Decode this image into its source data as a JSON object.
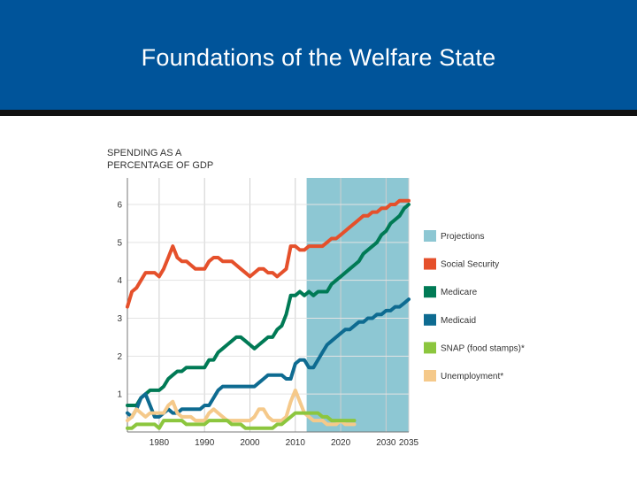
{
  "slide": {
    "title": "Foundations of the Welfare State"
  },
  "chart_data": {
    "type": "line",
    "title": "",
    "ylabel_lines": [
      "SPENDING AS A",
      "PERCENTAGE  OF GDP"
    ],
    "xlabel": "",
    "xlim": [
      1973,
      2035
    ],
    "ylim": [
      0,
      6.7
    ],
    "xticks": [
      1980,
      1990,
      2000,
      2010,
      2020,
      2030,
      2035
    ],
    "xtick_labels": [
      "1980",
      "1990",
      "2000",
      "2010",
      "2020",
      "2030",
      "2035"
    ],
    "yticks": [
      1,
      2,
      3,
      4,
      5,
      6
    ],
    "ytick_labels": [
      "1",
      "2",
      "3",
      "4",
      "5",
      "6"
    ],
    "grid": true,
    "projection": {
      "label": "Projections",
      "from": 2012.5,
      "to": 2035,
      "color": "#8dc7d3"
    },
    "legend_position": "right",
    "series": [
      {
        "name": "Social Security",
        "color": "#e5502b",
        "x": [
          1973,
          1974,
          1975,
          1976,
          1977,
          1978,
          1979,
          1980,
          1981,
          1982,
          1983,
          1984,
          1985,
          1986,
          1987,
          1988,
          1989,
          1990,
          1991,
          1992,
          1993,
          1994,
          1995,
          1996,
          1997,
          1998,
          1999,
          2000,
          2001,
          2002,
          2003,
          2004,
          2005,
          2006,
          2007,
          2008,
          2009,
          2010,
          2011,
          2012,
          2013,
          2014,
          2015,
          2016,
          2017,
          2018,
          2019,
          2020,
          2021,
          2022,
          2023,
          2024,
          2025,
          2026,
          2027,
          2028,
          2029,
          2030,
          2031,
          2032,
          2033,
          2034,
          2035
        ],
        "values": [
          3.3,
          3.7,
          3.8,
          4.0,
          4.2,
          4.2,
          4.2,
          4.1,
          4.3,
          4.6,
          4.9,
          4.6,
          4.5,
          4.5,
          4.4,
          4.3,
          4.3,
          4.3,
          4.5,
          4.6,
          4.6,
          4.5,
          4.5,
          4.5,
          4.4,
          4.3,
          4.2,
          4.1,
          4.2,
          4.3,
          4.3,
          4.2,
          4.2,
          4.1,
          4.2,
          4.3,
          4.9,
          4.9,
          4.8,
          4.8,
          4.9,
          4.9,
          4.9,
          4.9,
          5.0,
          5.1,
          5.1,
          5.2,
          5.3,
          5.4,
          5.5,
          5.6,
          5.7,
          5.7,
          5.8,
          5.8,
          5.9,
          5.9,
          6.0,
          6.0,
          6.1,
          6.1,
          6.1
        ]
      },
      {
        "name": "Medicare",
        "color": "#007a55",
        "x": [
          1973,
          1974,
          1975,
          1976,
          1977,
          1978,
          1979,
          1980,
          1981,
          1982,
          1983,
          1984,
          1985,
          1986,
          1987,
          1988,
          1989,
          1990,
          1991,
          1992,
          1993,
          1994,
          1995,
          1996,
          1997,
          1998,
          1999,
          2000,
          2001,
          2002,
          2003,
          2004,
          2005,
          2006,
          2007,
          2008,
          2009,
          2010,
          2011,
          2012,
          2013,
          2014,
          2015,
          2016,
          2017,
          2018,
          2019,
          2020,
          2021,
          2022,
          2023,
          2024,
          2025,
          2026,
          2027,
          2028,
          2029,
          2030,
          2031,
          2032,
          2033,
          2034,
          2035
        ],
        "values": [
          0.7,
          0.7,
          0.7,
          0.9,
          1.0,
          1.1,
          1.1,
          1.1,
          1.2,
          1.4,
          1.5,
          1.6,
          1.6,
          1.7,
          1.7,
          1.7,
          1.7,
          1.7,
          1.9,
          1.9,
          2.1,
          2.2,
          2.3,
          2.4,
          2.5,
          2.5,
          2.4,
          2.3,
          2.2,
          2.3,
          2.4,
          2.5,
          2.5,
          2.7,
          2.8,
          3.1,
          3.6,
          3.6,
          3.7,
          3.6,
          3.7,
          3.6,
          3.7,
          3.7,
          3.7,
          3.9,
          4.0,
          4.1,
          4.2,
          4.3,
          4.4,
          4.5,
          4.7,
          4.8,
          4.9,
          5.0,
          5.2,
          5.3,
          5.5,
          5.6,
          5.7,
          5.9,
          6.0
        ]
      },
      {
        "name": "Medicaid",
        "color": "#0e6b91",
        "x": [
          1973,
          1974,
          1975,
          1976,
          1977,
          1978,
          1979,
          1980,
          1981,
          1982,
          1983,
          1984,
          1985,
          1986,
          1987,
          1988,
          1989,
          1990,
          1991,
          1992,
          1993,
          1994,
          1995,
          1996,
          1997,
          1998,
          1999,
          2000,
          2001,
          2002,
          2003,
          2004,
          2005,
          2006,
          2007,
          2008,
          2009,
          2010,
          2011,
          2012,
          2013,
          2014,
          2015,
          2016,
          2017,
          2018,
          2019,
          2020,
          2021,
          2022,
          2023,
          2024,
          2025,
          2026,
          2027,
          2028,
          2029,
          2030,
          2031,
          2032,
          2033,
          2034,
          2035
        ],
        "values": [
          0.5,
          0.4,
          0.6,
          0.9,
          1.0,
          0.7,
          0.4,
          0.4,
          0.5,
          0.6,
          0.5,
          0.5,
          0.6,
          0.6,
          0.6,
          0.6,
          0.6,
          0.7,
          0.7,
          0.9,
          1.1,
          1.2,
          1.2,
          1.2,
          1.2,
          1.2,
          1.2,
          1.2,
          1.2,
          1.3,
          1.4,
          1.5,
          1.5,
          1.5,
          1.5,
          1.4,
          1.4,
          1.8,
          1.9,
          1.9,
          1.7,
          1.7,
          1.9,
          2.1,
          2.3,
          2.4,
          2.5,
          2.6,
          2.7,
          2.7,
          2.8,
          2.9,
          2.9,
          3.0,
          3.0,
          3.1,
          3.1,
          3.2,
          3.2,
          3.3,
          3.3,
          3.4,
          3.5
        ]
      },
      {
        "name": "Unemployment*",
        "color": "#f5c98a",
        "x": [
          1973,
          1974,
          1975,
          1976,
          1977,
          1978,
          1979,
          1980,
          1981,
          1982,
          1983,
          1984,
          1985,
          1986,
          1987,
          1988,
          1989,
          1990,
          1991,
          1992,
          1993,
          1994,
          1995,
          1996,
          1997,
          1998,
          1999,
          2000,
          2001,
          2002,
          2003,
          2004,
          2005,
          2006,
          2007,
          2008,
          2009,
          2010,
          2011,
          2012,
          2013,
          2014,
          2015,
          2016,
          2017,
          2018,
          2019,
          2020,
          2021,
          2022,
          2023
        ],
        "values": [
          0.3,
          0.4,
          0.6,
          0.5,
          0.4,
          0.5,
          0.5,
          0.5,
          0.5,
          0.7,
          0.8,
          0.5,
          0.4,
          0.4,
          0.4,
          0.3,
          0.3,
          0.3,
          0.5,
          0.6,
          0.5,
          0.4,
          0.3,
          0.3,
          0.3,
          0.3,
          0.3,
          0.3,
          0.4,
          0.6,
          0.6,
          0.4,
          0.3,
          0.3,
          0.3,
          0.4,
          0.8,
          1.1,
          0.8,
          0.5,
          0.4,
          0.3,
          0.3,
          0.3,
          0.2,
          0.2,
          0.2,
          0.3,
          0.2,
          0.2,
          0.2
        ]
      },
      {
        "name": "SNAP (food stamps)*",
        "color": "#8cc63e",
        "x": [
          1973,
          1974,
          1975,
          1976,
          1977,
          1978,
          1979,
          1980,
          1981,
          1982,
          1983,
          1984,
          1985,
          1986,
          1987,
          1988,
          1989,
          1990,
          1991,
          1992,
          1993,
          1994,
          1995,
          1996,
          1997,
          1998,
          1999,
          2000,
          2001,
          2002,
          2003,
          2004,
          2005,
          2006,
          2007,
          2008,
          2009,
          2010,
          2011,
          2012,
          2013,
          2014,
          2015,
          2016,
          2017,
          2018,
          2019,
          2020,
          2021,
          2022,
          2023
        ],
        "values": [
          0.1,
          0.1,
          0.2,
          0.2,
          0.2,
          0.2,
          0.2,
          0.1,
          0.3,
          0.3,
          0.3,
          0.3,
          0.3,
          0.2,
          0.2,
          0.2,
          0.2,
          0.2,
          0.3,
          0.3,
          0.3,
          0.3,
          0.3,
          0.2,
          0.2,
          0.2,
          0.1,
          0.1,
          0.1,
          0.1,
          0.1,
          0.1,
          0.1,
          0.2,
          0.2,
          0.3,
          0.4,
          0.5,
          0.5,
          0.5,
          0.5,
          0.5,
          0.5,
          0.4,
          0.4,
          0.3,
          0.3,
          0.3,
          0.3,
          0.3,
          0.3
        ]
      }
    ],
    "legend": [
      {
        "label": "Projections",
        "color": "#8dc7d3"
      },
      {
        "label": "Social Security",
        "color": "#e5502b"
      },
      {
        "label": "Medicare",
        "color": "#007a55"
      },
      {
        "label": "Medicaid",
        "color": "#0e6b91"
      },
      {
        "label": "SNAP (food stamps)*",
        "color": "#8cc63e"
      },
      {
        "label": "Unemployment*",
        "color": "#f5c98a"
      }
    ]
  }
}
